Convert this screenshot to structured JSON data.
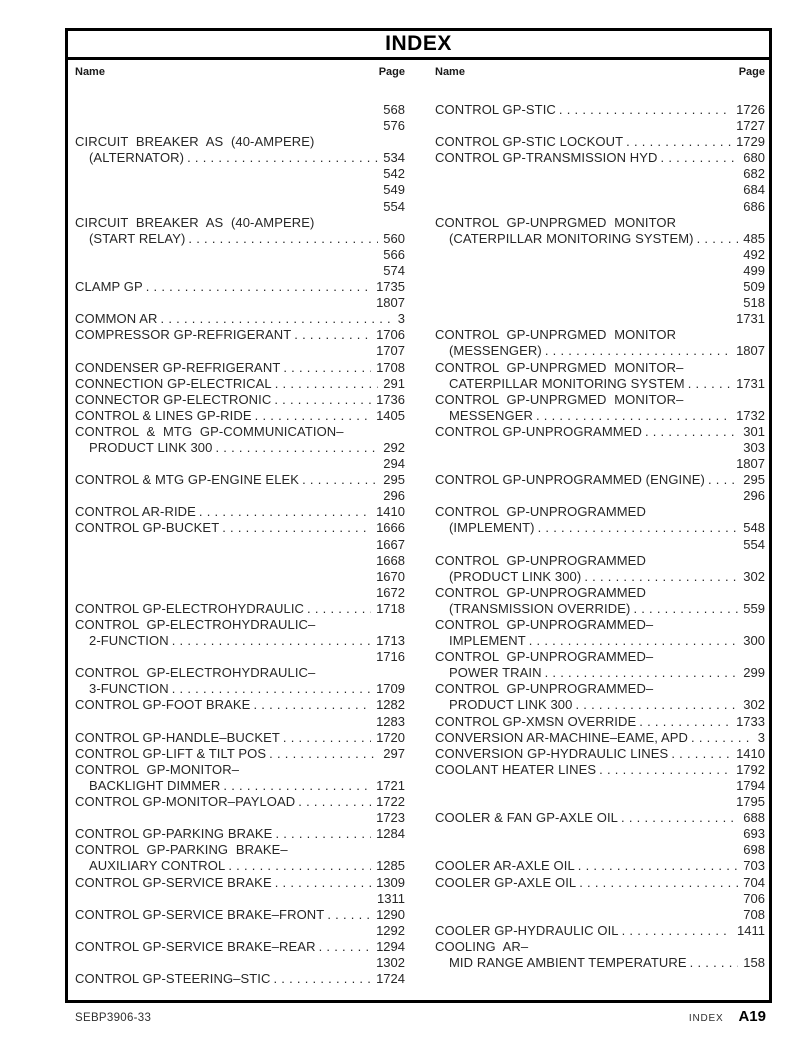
{
  "title": "INDEX",
  "column_headers": {
    "name": "Name",
    "page": "Page"
  },
  "left_column": [
    {
      "k": "n",
      "p": "568"
    },
    {
      "k": "n",
      "p": "576"
    },
    {
      "k": "h",
      "n": "CIRCUIT BREAKER AS (40-AMPERE)"
    },
    {
      "k": "s",
      "n": "(ALTERNATOR)",
      "p": "534"
    },
    {
      "k": "n",
      "p": "542"
    },
    {
      "k": "n",
      "p": "549"
    },
    {
      "k": "n",
      "p": "554"
    },
    {
      "k": "h",
      "n": "CIRCUIT BREAKER AS (40-AMPERE)"
    },
    {
      "k": "s",
      "n": "(START RELAY)",
      "p": "560"
    },
    {
      "k": "n",
      "p": "566"
    },
    {
      "k": "n",
      "p": "574"
    },
    {
      "k": "f",
      "n": "CLAMP GP",
      "p": "1735"
    },
    {
      "k": "n",
      "p": "1807"
    },
    {
      "k": "f",
      "n": "COMMON AR",
      "p": "3"
    },
    {
      "k": "f",
      "n": "COMPRESSOR GP-REFRIGERANT",
      "p": "1706"
    },
    {
      "k": "n",
      "p": "1707"
    },
    {
      "k": "f",
      "n": "CONDENSER GP-REFRIGERANT",
      "p": "1708"
    },
    {
      "k": "f",
      "n": "CONNECTION GP-ELECTRICAL",
      "p": "291"
    },
    {
      "k": "f",
      "n": "CONNECTOR GP-ELECTRONIC",
      "p": "1736"
    },
    {
      "k": "f",
      "n": "CONTROL & LINES GP-RIDE",
      "p": "1405"
    },
    {
      "k": "h",
      "n": "CONTROL & MTG GP-COMMUNICATION–"
    },
    {
      "k": "s",
      "n": "PRODUCT LINK 300",
      "p": "292"
    },
    {
      "k": "n",
      "p": "294"
    },
    {
      "k": "f",
      "n": "CONTROL & MTG GP-ENGINE ELEK",
      "p": "295"
    },
    {
      "k": "n",
      "p": "296"
    },
    {
      "k": "f",
      "n": "CONTROL AR-RIDE",
      "p": "1410"
    },
    {
      "k": "f",
      "n": "CONTROL GP-BUCKET",
      "p": "1666"
    },
    {
      "k": "n",
      "p": "1667"
    },
    {
      "k": "n",
      "p": "1668"
    },
    {
      "k": "n",
      "p": "1670"
    },
    {
      "k": "n",
      "p": "1672"
    },
    {
      "k": "f",
      "n": "CONTROL GP-ELECTROHYDRAULIC",
      "p": "1718"
    },
    {
      "k": "h",
      "n": "CONTROL GP-ELECTROHYDRAULIC–"
    },
    {
      "k": "s",
      "n": "2-FUNCTION",
      "p": "1713"
    },
    {
      "k": "n",
      "p": "1716"
    },
    {
      "k": "h",
      "n": "CONTROL GP-ELECTROHYDRAULIC–"
    },
    {
      "k": "s",
      "n": "3-FUNCTION",
      "p": "1709"
    },
    {
      "k": "f",
      "n": "CONTROL GP-FOOT BRAKE",
      "p": "1282"
    },
    {
      "k": "n",
      "p": "1283"
    },
    {
      "k": "f",
      "n": "CONTROL GP-HANDLE–BUCKET",
      "p": "1720"
    },
    {
      "k": "f",
      "n": "CONTROL GP-LIFT & TILT POS",
      "p": "297"
    },
    {
      "k": "h",
      "n": "CONTROL GP-MONITOR–"
    },
    {
      "k": "s",
      "n": "BACKLIGHT DIMMER",
      "p": "1721"
    },
    {
      "k": "f",
      "n": "CONTROL GP-MONITOR–PAYLOAD",
      "p": "1722"
    },
    {
      "k": "n",
      "p": "1723"
    },
    {
      "k": "f",
      "n": "CONTROL GP-PARKING BRAKE",
      "p": "1284"
    },
    {
      "k": "h",
      "n": "CONTROL GP-PARKING BRAKE–"
    },
    {
      "k": "s",
      "n": "AUXILIARY CONTROL",
      "p": "1285"
    },
    {
      "k": "f",
      "n": "CONTROL GP-SERVICE BRAKE",
      "p": "1309"
    },
    {
      "k": "n",
      "p": "1311"
    },
    {
      "k": "f",
      "n": "CONTROL GP-SERVICE BRAKE–FRONT",
      "p": "1290"
    },
    {
      "k": "n",
      "p": "1292"
    },
    {
      "k": "f",
      "n": "CONTROL GP-SERVICE BRAKE–REAR",
      "p": "1294"
    },
    {
      "k": "n",
      "p": "1302"
    },
    {
      "k": "f",
      "n": "CONTROL GP-STEERING–STIC",
      "p": "1724"
    }
  ],
  "right_column": [
    {
      "k": "f",
      "n": "CONTROL GP-STIC",
      "p": "1726"
    },
    {
      "k": "n",
      "p": "1727"
    },
    {
      "k": "f",
      "n": "CONTROL GP-STIC LOCKOUT",
      "p": "1729"
    },
    {
      "k": "f",
      "n": "CONTROL GP-TRANSMISSION HYD",
      "p": "680"
    },
    {
      "k": "n",
      "p": "682"
    },
    {
      "k": "n",
      "p": "684"
    },
    {
      "k": "n",
      "p": "686"
    },
    {
      "k": "h",
      "n": "CONTROL GP-UNPRGMED MONITOR"
    },
    {
      "k": "s",
      "n": "(CATERPILLAR MONITORING SYSTEM)",
      "p": "485"
    },
    {
      "k": "n",
      "p": "492"
    },
    {
      "k": "n",
      "p": "499"
    },
    {
      "k": "n",
      "p": "509"
    },
    {
      "k": "n",
      "p": "518"
    },
    {
      "k": "n",
      "p": "1731"
    },
    {
      "k": "h",
      "n": "CONTROL GP-UNPRGMED MONITOR"
    },
    {
      "k": "s",
      "n": "(MESSENGER)",
      "p": "1807"
    },
    {
      "k": "h",
      "n": "CONTROL GP-UNPRGMED MONITOR–"
    },
    {
      "k": "s",
      "n": "CATERPILLAR MONITORING SYSTEM",
      "p": "1731"
    },
    {
      "k": "h",
      "n": "CONTROL GP-UNPRGMED MONITOR–"
    },
    {
      "k": "s",
      "n": "MESSENGER",
      "p": "1732"
    },
    {
      "k": "f",
      "n": "CONTROL GP-UNPROGRAMMED",
      "p": "301"
    },
    {
      "k": "n",
      "p": "303"
    },
    {
      "k": "n",
      "p": "1807"
    },
    {
      "k": "f",
      "n": "CONTROL GP-UNPROGRAMMED (ENGINE)",
      "p": "295"
    },
    {
      "k": "n",
      "p": "296"
    },
    {
      "k": "h",
      "n": "CONTROL GP-UNPROGRAMMED"
    },
    {
      "k": "s",
      "n": "(IMPLEMENT)",
      "p": "548"
    },
    {
      "k": "n",
      "p": "554"
    },
    {
      "k": "h",
      "n": "CONTROL GP-UNPROGRAMMED"
    },
    {
      "k": "s",
      "n": "(PRODUCT LINK 300)",
      "p": "302"
    },
    {
      "k": "h",
      "n": "CONTROL GP-UNPROGRAMMED"
    },
    {
      "k": "s",
      "n": "(TRANSMISSION OVERRIDE)",
      "p": "559"
    },
    {
      "k": "h",
      "n": "CONTROL GP-UNPROGRAMMED–"
    },
    {
      "k": "s",
      "n": "IMPLEMENT",
      "p": "300"
    },
    {
      "k": "h",
      "n": "CONTROL GP-UNPROGRAMMED–"
    },
    {
      "k": "s",
      "n": "POWER TRAIN",
      "p": "299"
    },
    {
      "k": "h",
      "n": "CONTROL GP-UNPROGRAMMED–"
    },
    {
      "k": "s",
      "n": "PRODUCT LINK 300",
      "p": "302"
    },
    {
      "k": "f",
      "n": "CONTROL GP-XMSN OVERRIDE",
      "p": "1733"
    },
    {
      "k": "f",
      "n": "CONVERSION AR-MACHINE–EAME, APD",
      "p": "3"
    },
    {
      "k": "f",
      "n": "CONVERSION GP-HYDRAULIC LINES",
      "p": "1410"
    },
    {
      "k": "f",
      "n": "COOLANT HEATER LINES",
      "p": "1792"
    },
    {
      "k": "n",
      "p": "1794"
    },
    {
      "k": "n",
      "p": "1795"
    },
    {
      "k": "f",
      "n": "COOLER & FAN GP-AXLE OIL",
      "p": "688"
    },
    {
      "k": "n",
      "p": "693"
    },
    {
      "k": "n",
      "p": "698"
    },
    {
      "k": "f",
      "n": "COOLER AR-AXLE OIL",
      "p": "703"
    },
    {
      "k": "f",
      "n": "COOLER GP-AXLE OIL",
      "p": "704"
    },
    {
      "k": "n",
      "p": "706"
    },
    {
      "k": "n",
      "p": "708"
    },
    {
      "k": "f",
      "n": "COOLER GP-HYDRAULIC OIL",
      "p": "1411"
    },
    {
      "k": "h",
      "n": "COOLING AR–"
    },
    {
      "k": "s",
      "n": "MID RANGE AMBIENT TEMPERATURE",
      "p": "158"
    }
  ],
  "footer": {
    "doc_number": "SEBP3906-33",
    "section_label": "INDEX",
    "page_number": "A19"
  }
}
